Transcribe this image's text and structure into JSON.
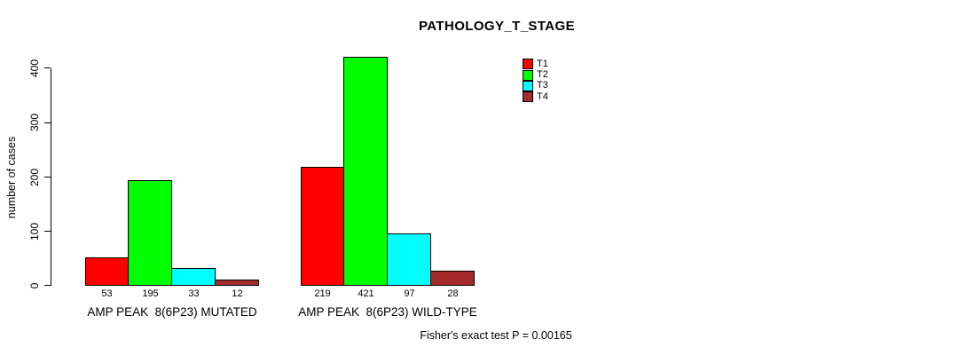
{
  "chart_data": {
    "type": "bar",
    "title": "PATHOLOGY_T_STAGE",
    "ylabel": "number of cases",
    "xlabel": "",
    "ylim": [
      0,
      400
    ],
    "yticks": [
      0,
      100,
      200,
      300,
      400
    ],
    "grid": false,
    "legend_position": "top-right",
    "bar_value_labels": true,
    "categories": [
      "AMP PEAK  8(6P23) MUTATED",
      "AMP PEAK  8(6P23) WILD-TYPE"
    ],
    "series": [
      {
        "name": "T1",
        "color": "#FF0000",
        "values": [
          53,
          219
        ]
      },
      {
        "name": "T2",
        "color": "#00FF00",
        "values": [
          195,
          421
        ]
      },
      {
        "name": "T3",
        "color": "#00FFFF",
        "values": [
          33,
          97
        ]
      },
      {
        "name": "T4",
        "color": "#A52A2A",
        "values": [
          12,
          28
        ]
      }
    ],
    "annotation": "Fisher's exact test P = 0.00165"
  },
  "colors": {
    "background": "#FFFFFF",
    "text": "#000000",
    "axis": "#000000"
  }
}
